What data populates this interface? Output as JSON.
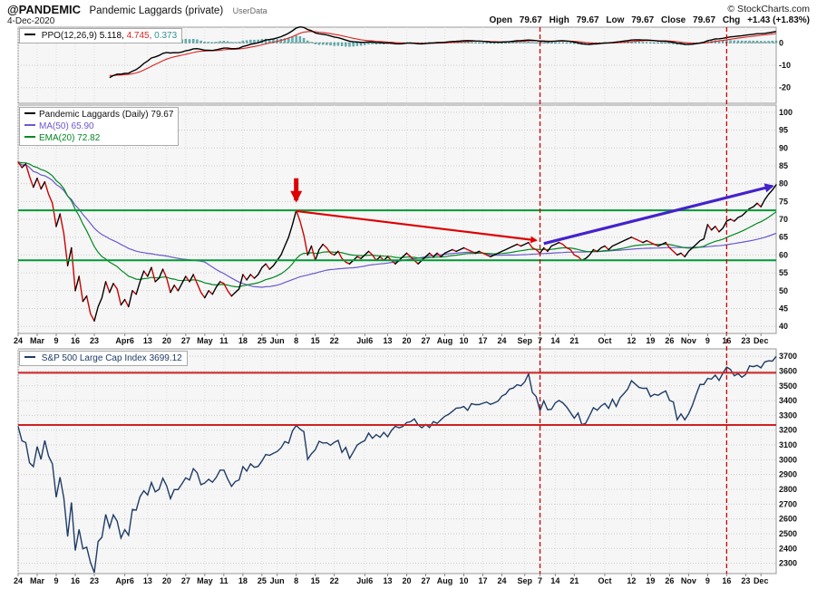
{
  "header": {
    "symbol": "@PANDEMIC",
    "title": "Pandemic Laggards (private)",
    "source_tag": "UserData",
    "copyright": "© StockCharts.com",
    "date": "4-Dec-2020",
    "quote": {
      "open_l": "Open",
      "open_v": "79.67",
      "high_l": "High",
      "high_v": "79.67",
      "low_l": "Low",
      "low_v": "79.67",
      "close_l": "Close",
      "close_v": "79.67",
      "chg_l": "Chg",
      "chg_v": "+1.43 (+1.83%)"
    }
  },
  "legends": {
    "ppo": {
      "label": "PPO(12,26,9)",
      "v1": "5.118,",
      "v2": "4.745,",
      "v3": "0.373"
    },
    "main": [
      {
        "label": "Pandemic Laggards (Daily) 79.67"
      },
      {
        "label": "MA(50) 65.90"
      },
      {
        "label": "EMA(20) 72.82"
      }
    ],
    "sp": {
      "label": "S&P 500 Large Cap Index 3699.12"
    }
  },
  "colors": {
    "price_up": "#000000",
    "price_down": "#cc0000",
    "ma50": "#6a5acd",
    "ema20": "#008822",
    "sp_line": "#1f3c66",
    "green_line": "#009933",
    "red_line": "#cc2222",
    "dashed_vline": "#cc0000",
    "arrow_red": "#dd0000",
    "arrow_blue": "#4422cc",
    "ppo_line": "#000000",
    "ppo_signal": "#dd2222",
    "ppo_hist_fill": "#6db3b3",
    "ppo_hist_stroke": "#2f8f8f",
    "grid": "#cccccc",
    "panel_bg": "#f6f6f6",
    "panel_border": "#999999",
    "axis_text": "#111111"
  },
  "chart_data": [
    {
      "type": "line",
      "panel": "ppo",
      "title": "PPO(12,26,9)",
      "params": {
        "fast": 12,
        "slow": 26,
        "signal": 9
      },
      "last_values": {
        "ppo": 5.118,
        "signal": 4.745,
        "histogram": 0.373
      },
      "derived_from": "main price series",
      "seed_prehistory": {
        "days": 30,
        "value": 91
      },
      "warmup_skip": {
        "line": 24,
        "histogram": 40
      },
      "ylim": [
        -27,
        7
      ],
      "yticks": [
        0,
        -10,
        -20
      ]
    },
    {
      "type": "line",
      "panel": "main",
      "title": "Pandemic Laggards (Daily)",
      "n_points": 200,
      "x_tick_labels": [
        [
          "24",
          0
        ],
        [
          "Mar",
          5
        ],
        [
          "9",
          10
        ],
        [
          "16",
          15
        ],
        [
          "23",
          20
        ],
        [
          "Apr6",
          28
        ],
        [
          "13",
          34
        ],
        [
          "20",
          39
        ],
        [
          "27",
          44
        ],
        [
          "May",
          49
        ],
        [
          "11",
          54
        ],
        [
          "18",
          59
        ],
        [
          "25",
          64
        ],
        [
          "Jun",
          68
        ],
        [
          "8",
          73
        ],
        [
          "15",
          78
        ],
        [
          "22",
          83
        ],
        [
          "Jul6",
          91
        ],
        [
          "13",
          97
        ],
        [
          "20",
          102
        ],
        [
          "27",
          107
        ],
        [
          "Aug",
          112
        ],
        [
          "10",
          117
        ],
        [
          "17",
          122
        ],
        [
          "24",
          127
        ],
        [
          "Sep",
          133
        ],
        [
          "7",
          137
        ],
        [
          "14",
          141
        ],
        [
          "21",
          146
        ],
        [
          "Oct",
          154
        ],
        [
          "12",
          161
        ],
        [
          "19",
          166
        ],
        [
          "26",
          171
        ],
        [
          "Nov",
          176
        ],
        [
          "9",
          181
        ],
        [
          "16",
          186
        ],
        [
          "23",
          191
        ],
        [
          "Dec",
          195
        ]
      ],
      "price": [
        86,
        84.5,
        85.5,
        82,
        79,
        81.5,
        78.5,
        80.5,
        77,
        74.5,
        68,
        71.5,
        66,
        57,
        62,
        50,
        54,
        47,
        48.5,
        43.5,
        41.5,
        45.5,
        48,
        52.5,
        49.5,
        52,
        50.5,
        46,
        47.5,
        45.5,
        50,
        49,
        52.5,
        55.5,
        54,
        56.5,
        52.5,
        53.5,
        56,
        53.5,
        49.5,
        51.5,
        50,
        52,
        54,
        52.5,
        54.5,
        52,
        49.5,
        48,
        50,
        49,
        51,
        52.5,
        52,
        50,
        48.5,
        49.5,
        50.5,
        54.5,
        53,
        54.5,
        53.5,
        54.5,
        56.5,
        57.5,
        56,
        57,
        58.5,
        60,
        62.5,
        65,
        68.5,
        72.5,
        69.5,
        65.5,
        60,
        62.5,
        58.5,
        61.5,
        63,
        62,
        60.5,
        60,
        61,
        59,
        58,
        57.5,
        58.5,
        59.5,
        59,
        60,
        61,
        60,
        58.5,
        59.5,
        58.5,
        59.5,
        58.5,
        57.5,
        58.5,
        59.5,
        60.5,
        59.5,
        58.5,
        57.5,
        58.5,
        59.5,
        60.5,
        59.5,
        60.5,
        59.5,
        60.5,
        61,
        61.5,
        61,
        61.5,
        62,
        61.5,
        61,
        60.5,
        61,
        60.5,
        60,
        59.5,
        60,
        60.5,
        61,
        61.5,
        62,
        62.5,
        63,
        62.5,
        63,
        63.5,
        62,
        61.5,
        60.5,
        62,
        61,
        62.5,
        63,
        63.5,
        63,
        62,
        61.5,
        60,
        59.5,
        58.5,
        59,
        60,
        61.5,
        61,
        62,
        62.5,
        61.5,
        62.5,
        63,
        63.5,
        64,
        64.5,
        65,
        64.5,
        64,
        63.5,
        64,
        63.5,
        63,
        62.5,
        63,
        63.5,
        62,
        61,
        60,
        60.5,
        59.5,
        61,
        62,
        63,
        64,
        64.5,
        68.5,
        67,
        68,
        66.5,
        67.5,
        69.5,
        70,
        69.5,
        70.5,
        71,
        72,
        73,
        73.5,
        74.5,
        73.5,
        75.5,
        77,
        78.2,
        79.67
      ],
      "overlays": [
        {
          "name": "MA(50)",
          "window": 50,
          "last": 65.9
        },
        {
          "name": "EMA(20)",
          "window": 20,
          "last": 72.82
        }
      ],
      "ylim": [
        38,
        102
      ],
      "yticks": [
        100,
        95,
        90,
        85,
        80,
        75,
        70,
        65,
        60,
        55,
        50,
        45,
        40
      ],
      "hlines": [
        {
          "value": 72.5,
          "color": "green_line"
        },
        {
          "value": 58.5,
          "color": "green_line"
        }
      ],
      "vlines": [
        {
          "day": 137,
          "color": "dashed_vline"
        },
        {
          "day": 186,
          "color": "dashed_vline"
        }
      ],
      "arrows": [
        {
          "kind": "down-arrow",
          "day": 73,
          "from": 81.5,
          "to": 75.3,
          "color": "arrow_red",
          "width": 5
        },
        {
          "kind": "line-arrow",
          "from_day": 73,
          "from_val": 72.3,
          "to_day": 136,
          "to_val": 64.1,
          "color": "arrow_red",
          "width": 2.2
        },
        {
          "kind": "line-arrow",
          "from_day": 138,
          "from_val": 63.2,
          "to_day": 198,
          "to_val": 79.3,
          "color": "arrow_blue",
          "width": 3.2
        }
      ]
    },
    {
      "type": "line",
      "panel": "sp",
      "title": "S&P 500 Large Cap Index",
      "last": 3699.12,
      "values": [
        3226,
        3128,
        3116,
        2979,
        2954,
        3090,
        3003,
        3130,
        3024,
        2972,
        2746,
        2882,
        2741,
        2481,
        2711,
        2386,
        2529,
        2398,
        2409,
        2305,
        2237,
        2447,
        2476,
        2630,
        2541,
        2627,
        2585,
        2470,
        2527,
        2489,
        2664,
        2659,
        2750,
        2790,
        2762,
        2846,
        2783,
        2800,
        2875,
        2823,
        2737,
        2799,
        2798,
        2837,
        2878,
        2863,
        2940,
        2912,
        2831,
        2843,
        2868,
        2848,
        2881,
        2930,
        2930,
        2870,
        2820,
        2853,
        2864,
        2954,
        2923,
        2972,
        2949,
        2955,
        2992,
        3036,
        3030,
        3044,
        3056,
        3081,
        3123,
        3112,
        3194,
        3232,
        3207,
        3190,
        3002,
        3041,
        3067,
        3125,
        3113,
        3115,
        3098,
        3118,
        3131,
        3050,
        3084,
        3009,
        3053,
        3100,
        3116,
        3130,
        3180,
        3145,
        3170,
        3152,
        3185,
        3155,
        3198,
        3226,
        3216,
        3225,
        3252,
        3257,
        3276,
        3236,
        3216,
        3239,
        3218,
        3258,
        3246,
        3271,
        3294,
        3307,
        3328,
        3349,
        3351,
        3360,
        3334,
        3380,
        3373,
        3373,
        3382,
        3390,
        3375,
        3385,
        3397,
        3431,
        3444,
        3478,
        3485,
        3508,
        3500,
        3527,
        3581,
        3455,
        3427,
        3332,
        3399,
        3339,
        3341,
        3384,
        3401,
        3385,
        3357,
        3319,
        3281,
        3316,
        3237,
        3247,
        3298,
        3352,
        3335,
        3363,
        3381,
        3348,
        3409,
        3361,
        3419,
        3447,
        3477,
        3534,
        3512,
        3489,
        3483,
        3484,
        3427,
        3443,
        3436,
        3453,
        3465,
        3401,
        3391,
        3271,
        3310,
        3270,
        3310,
        3369,
        3443,
        3510,
        3509,
        3550,
        3545,
        3572,
        3537,
        3585,
        3627,
        3610,
        3568,
        3582,
        3558,
        3577,
        3635,
        3630,
        3638,
        3622,
        3662,
        3669,
        3667,
        3699
      ],
      "ylim": [
        2230,
        3750
      ],
      "yticks": [
        3700,
        3600,
        3500,
        3400,
        3300,
        3200,
        3100,
        3000,
        2900,
        2800,
        2700,
        2600,
        2500,
        2400,
        2300
      ],
      "hlines": [
        {
          "value": 3588,
          "color": "red_line"
        },
        {
          "value": 3235,
          "color": "red_line"
        }
      ]
    }
  ]
}
